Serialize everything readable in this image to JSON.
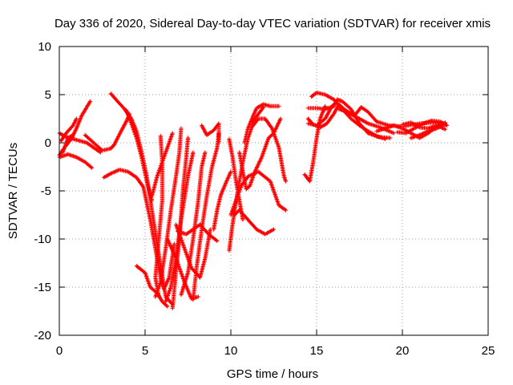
{
  "chart_data": {
    "type": "scatter",
    "title": "Day 336 of 2020, Sidereal Day-to-day VTEC variation (SDTVAR) for receiver xmis",
    "xlabel": "GPS time / hours",
    "ylabel": "SDTVAR / TECUs",
    "xlim": [
      0,
      25
    ],
    "ylim": [
      -20,
      10
    ],
    "xticks": [
      0,
      5,
      10,
      15,
      20,
      25
    ],
    "yticks": [
      -20,
      -15,
      -10,
      -5,
      0,
      5,
      10
    ],
    "grid": true,
    "marker": "+",
    "color": "#ff0000",
    "series": [
      {
        "points": [
          [
            0,
            1.0
          ],
          [
            0.4,
            0.6
          ],
          [
            1.0,
            0.3
          ],
          [
            1.6,
            0.0
          ],
          [
            2.0,
            -0.5
          ],
          [
            2.4,
            -1.0
          ]
        ]
      },
      {
        "points": [
          [
            0,
            -1.5
          ],
          [
            0.5,
            -1.2
          ],
          [
            1.0,
            -1.5
          ],
          [
            1.5,
            -2.0
          ],
          [
            1.9,
            -2.6
          ]
        ]
      },
      {
        "points": [
          [
            0,
            -1.3
          ],
          [
            0.3,
            -0.5
          ],
          [
            0.7,
            0.4
          ],
          [
            1.0,
            1.5
          ],
          [
            1.3,
            2.8
          ],
          [
            1.8,
            4.3
          ]
        ]
      },
      {
        "points": [
          [
            0.1,
            0.2
          ],
          [
            0.4,
            1.0
          ],
          [
            0.8,
            1.8
          ],
          [
            1.0,
            2.5
          ]
        ]
      },
      {
        "points": [
          [
            0.2,
            -1.0
          ],
          [
            0.5,
            0.5
          ],
          [
            0.8,
            0.8
          ]
        ]
      },
      {
        "points": [
          [
            2.6,
            -3.6
          ],
          [
            3.0,
            -3.2
          ],
          [
            3.5,
            -2.8
          ],
          [
            4.0,
            -3.0
          ],
          [
            4.5,
            -3.6
          ],
          [
            4.9,
            -4.6
          ],
          [
            5.3,
            -8.0
          ],
          [
            5.6,
            -11.0
          ],
          [
            5.9,
            -14.0
          ],
          [
            6.1,
            -15.2
          ],
          [
            6.4,
            -14.0
          ],
          [
            6.7,
            -10.5
          ]
        ]
      },
      {
        "points": [
          [
            1.5,
            0.8
          ],
          [
            2.0,
            0.0
          ],
          [
            2.5,
            -0.8
          ],
          [
            3.0,
            -0.6
          ],
          [
            3.2,
            -0.2
          ],
          [
            3.6,
            1.2
          ],
          [
            3.9,
            2.2
          ],
          [
            4.1,
            3.0
          ]
        ]
      },
      {
        "points": [
          [
            3.0,
            5.1
          ],
          [
            3.3,
            4.5
          ],
          [
            3.8,
            3.5
          ],
          [
            4.2,
            2.5
          ],
          [
            4.5,
            1.2
          ],
          [
            4.8,
            -1.0
          ],
          [
            5.1,
            -3.5
          ],
          [
            5.4,
            -7.0
          ],
          [
            5.7,
            -10.5
          ],
          [
            6.0,
            -13.8
          ],
          [
            6.2,
            -16.0
          ],
          [
            6.6,
            -16.8
          ]
        ]
      },
      {
        "points": [
          [
            3.9,
            3.4
          ],
          [
            4.1,
            2.5
          ],
          [
            4.5,
            0.5
          ],
          [
            4.8,
            -1.5
          ],
          [
            5.1,
            -4.0
          ],
          [
            5.4,
            -6.0
          ]
        ]
      },
      {
        "points": [
          [
            4.5,
            -12.8
          ],
          [
            5.0,
            -13.5
          ],
          [
            5.3,
            -15.0
          ],
          [
            5.7,
            -15.6
          ],
          [
            6.0,
            -16.5
          ],
          [
            6.3,
            -17.0
          ]
        ]
      },
      {
        "points": [
          [
            5.4,
            -5.5
          ],
          [
            5.7,
            -3.5
          ],
          [
            6.0,
            -2.0
          ],
          [
            6.3,
            -0.5
          ],
          [
            6.6,
            1.0
          ]
        ]
      },
      {
        "points": [
          [
            5.9,
            0.7
          ],
          [
            6.0,
            -2.0
          ],
          [
            6.0,
            -6.0
          ],
          [
            5.8,
            -10.0
          ],
          [
            5.6,
            -14.0
          ],
          [
            5.8,
            -16.0
          ]
        ]
      },
      {
        "points": [
          [
            5.6,
            -16.0
          ],
          [
            5.9,
            -14.5
          ],
          [
            6.2,
            -11.0
          ],
          [
            6.5,
            -7.0
          ],
          [
            6.8,
            -3.5
          ],
          [
            7.0,
            -1.0
          ],
          [
            7.1,
            1.5
          ]
        ]
      },
      {
        "points": [
          [
            6.2,
            -16.5
          ],
          [
            6.5,
            -15.0
          ],
          [
            6.8,
            -12.0
          ],
          [
            7.1,
            -8.0
          ],
          [
            7.5,
            -3.5
          ],
          [
            7.8,
            -1.0
          ]
        ]
      },
      {
        "points": [
          [
            6.6,
            -17.2
          ],
          [
            6.8,
            -13.5
          ],
          [
            7.0,
            -10.0
          ],
          [
            7.2,
            -5.0
          ],
          [
            7.4,
            -1.5
          ],
          [
            7.5,
            0.5
          ]
        ]
      },
      {
        "points": [
          [
            6.3,
            -10.0
          ],
          [
            6.8,
            -12.0
          ],
          [
            7.3,
            -14.5
          ],
          [
            7.7,
            -16.2
          ],
          [
            8.1,
            -16.0
          ]
        ]
      },
      {
        "points": [
          [
            6.8,
            -8.5
          ],
          [
            7.3,
            -11.0
          ],
          [
            7.7,
            -13.0
          ],
          [
            8.2,
            -14.0
          ],
          [
            8.5,
            -12.0
          ],
          [
            8.8,
            -9.0
          ]
        ]
      },
      {
        "points": [
          [
            7.1,
            -15.8
          ],
          [
            7.5,
            -13.5
          ],
          [
            7.8,
            -10.0
          ],
          [
            8.1,
            -6.0
          ],
          [
            8.3,
            -2.5
          ],
          [
            8.5,
            -1.0
          ]
        ]
      },
      {
        "points": [
          [
            6.9,
            -9.2
          ],
          [
            7.4,
            -9.5
          ],
          [
            7.8,
            -9.0
          ],
          [
            8.2,
            -8.5
          ],
          [
            8.7,
            -9.5
          ],
          [
            9.2,
            -10.2
          ]
        ]
      },
      {
        "points": [
          [
            7.8,
            -16.3
          ],
          [
            8.0,
            -13.0
          ],
          [
            8.3,
            -9.0
          ],
          [
            8.6,
            -5.5
          ],
          [
            8.9,
            -2.5
          ],
          [
            9.2,
            -0.5
          ],
          [
            9.3,
            1.0
          ]
        ]
      },
      {
        "points": [
          [
            8.3,
            1.8
          ],
          [
            8.6,
            0.8
          ],
          [
            9.0,
            1.3
          ],
          [
            9.3,
            2.0
          ],
          [
            9.3,
            0.0
          ]
        ]
      },
      {
        "points": [
          [
            9.0,
            -9.0
          ],
          [
            9.2,
            -7.0
          ],
          [
            9.4,
            -5.5
          ],
          [
            9.7,
            -4.2
          ],
          [
            10.0,
            -3.0
          ]
        ]
      },
      {
        "points": [
          [
            9.9,
            0.4
          ],
          [
            10.1,
            -1.5
          ],
          [
            10.3,
            -4.0
          ],
          [
            10.5,
            -6.0
          ],
          [
            10.7,
            -8.0
          ]
        ]
      },
      {
        "points": [
          [
            9.9,
            -11.2
          ],
          [
            10.1,
            -8.5
          ],
          [
            10.4,
            -5.0
          ],
          [
            10.7,
            -2.0
          ],
          [
            11.0,
            0.5
          ],
          [
            11.4,
            2.5
          ],
          [
            11.9,
            3.7
          ]
        ]
      },
      {
        "points": [
          [
            10.0,
            -7.5
          ],
          [
            10.3,
            -6.0
          ],
          [
            10.6,
            -4.5
          ],
          [
            11.0,
            -3.5
          ],
          [
            11.6,
            -3.0
          ],
          [
            12.3,
            -4.0
          ],
          [
            12.8,
            -6.5
          ],
          [
            13.2,
            -7.0
          ]
        ]
      },
      {
        "points": [
          [
            10.2,
            -7.5
          ],
          [
            10.5,
            -7.0
          ],
          [
            11.0,
            -8.0
          ],
          [
            11.5,
            -9.0
          ],
          [
            12.0,
            -9.5
          ],
          [
            12.5,
            -9.0
          ]
        ]
      },
      {
        "points": [
          [
            10.5,
            -1.0
          ],
          [
            10.7,
            -3.0
          ],
          [
            10.9,
            -4.8
          ],
          [
            11.1,
            -4.5
          ],
          [
            11.4,
            -3.0
          ],
          [
            11.8,
            -1.5
          ],
          [
            12.2,
            0.5
          ],
          [
            12.5,
            1.0
          ],
          [
            12.9,
            2.5
          ]
        ]
      },
      {
        "points": [
          [
            10.8,
            0.0
          ],
          [
            11.0,
            1.5
          ],
          [
            11.3,
            2.8
          ],
          [
            11.5,
            3.6
          ],
          [
            11.9,
            4.0
          ],
          [
            12.3,
            3.8
          ],
          [
            12.8,
            3.8
          ]
        ]
      },
      {
        "points": [
          [
            11.3,
            1.8
          ],
          [
            11.6,
            2.5
          ],
          [
            12.0,
            2.5
          ],
          [
            12.4,
            1.5
          ],
          [
            12.8,
            -0.5
          ],
          [
            13.0,
            -2.5
          ],
          [
            13.1,
            -3.5
          ],
          [
            13.2,
            -4.0
          ]
        ]
      },
      {
        "points": [
          [
            14.3,
            -3.3
          ],
          [
            14.6,
            -4.0
          ],
          [
            14.8,
            -2.0
          ],
          [
            15.0,
            0.5
          ],
          [
            15.2,
            2.5
          ],
          [
            15.5,
            3.8
          ]
        ]
      },
      {
        "points": [
          [
            14.7,
            4.8
          ],
          [
            15.0,
            5.2
          ],
          [
            15.5,
            5.0
          ],
          [
            16.0,
            4.5
          ],
          [
            16.5,
            3.5
          ],
          [
            17.0,
            2.5
          ],
          [
            17.5,
            1.8
          ],
          [
            18.0,
            1.2
          ],
          [
            18.5,
            0.7
          ],
          [
            19.0,
            0.4
          ]
        ]
      },
      {
        "points": [
          [
            14.5,
            2.5
          ],
          [
            14.8,
            1.9
          ],
          [
            15.2,
            1.6
          ],
          [
            15.6,
            2.0
          ],
          [
            16.0,
            3.0
          ],
          [
            16.3,
            4.0
          ],
          [
            16.6,
            3.5
          ],
          [
            17.0,
            3.0
          ],
          [
            17.5,
            2.5
          ],
          [
            18.0,
            2.0
          ],
          [
            18.7,
            1.6
          ],
          [
            19.5,
            1.0
          ]
        ]
      },
      {
        "points": [
          [
            14.5,
            3.6
          ],
          [
            15.0,
            3.6
          ],
          [
            15.5,
            3.5
          ],
          [
            16.0,
            3.8
          ],
          [
            16.2,
            4.5
          ],
          [
            16.5,
            4.3
          ],
          [
            17.0,
            3.5
          ],
          [
            17.5,
            2.0
          ],
          [
            18.0,
            1.0
          ],
          [
            18.6,
            0.6
          ],
          [
            19.3,
            0.5
          ]
        ]
      },
      {
        "points": [
          [
            14.5,
            2.0
          ],
          [
            15.0,
            1.8
          ],
          [
            15.5,
            2.5
          ],
          [
            15.8,
            3.5
          ],
          [
            16.0,
            4.0
          ]
        ]
      },
      {
        "points": [
          [
            16.3,
            3.5
          ],
          [
            16.8,
            3.2
          ],
          [
            17.2,
            2.8
          ],
          [
            17.6,
            3.7
          ],
          [
            18.0,
            3.2
          ],
          [
            18.5,
            2.2
          ],
          [
            19.2,
            1.8
          ],
          [
            20.0,
            1.7
          ],
          [
            21.0,
            2.0
          ],
          [
            21.8,
            2.1
          ],
          [
            22.5,
            2.0
          ]
        ]
      },
      {
        "points": [
          [
            18.5,
            1.2
          ],
          [
            19.0,
            1.5
          ],
          [
            19.5,
            1.8
          ],
          [
            20.0,
            1.5
          ],
          [
            20.5,
            1.0
          ],
          [
            21.0,
            0.5
          ],
          [
            21.5,
            1.0
          ],
          [
            22.0,
            1.7
          ],
          [
            22.5,
            2.1
          ]
        ]
      },
      {
        "points": [
          [
            19.7,
            1.1
          ],
          [
            20.2,
            1.0
          ],
          [
            20.7,
            1.5
          ],
          [
            21.2,
            2.0
          ],
          [
            21.7,
            2.3
          ],
          [
            22.2,
            2.2
          ],
          [
            22.6,
            1.8
          ]
        ]
      },
      {
        "points": [
          [
            20.0,
            1.9
          ],
          [
            20.5,
            2.1
          ],
          [
            21.0,
            1.6
          ],
          [
            21.5,
            1.5
          ],
          [
            22.0,
            1.8
          ],
          [
            22.5,
            1.4
          ]
        ]
      },
      {
        "points": [
          [
            20.5,
            0.5
          ],
          [
            21.0,
            0.8
          ],
          [
            21.5,
            1.2
          ],
          [
            22.0,
            1.5
          ],
          [
            22.5,
            1.9
          ]
        ]
      }
    ]
  }
}
